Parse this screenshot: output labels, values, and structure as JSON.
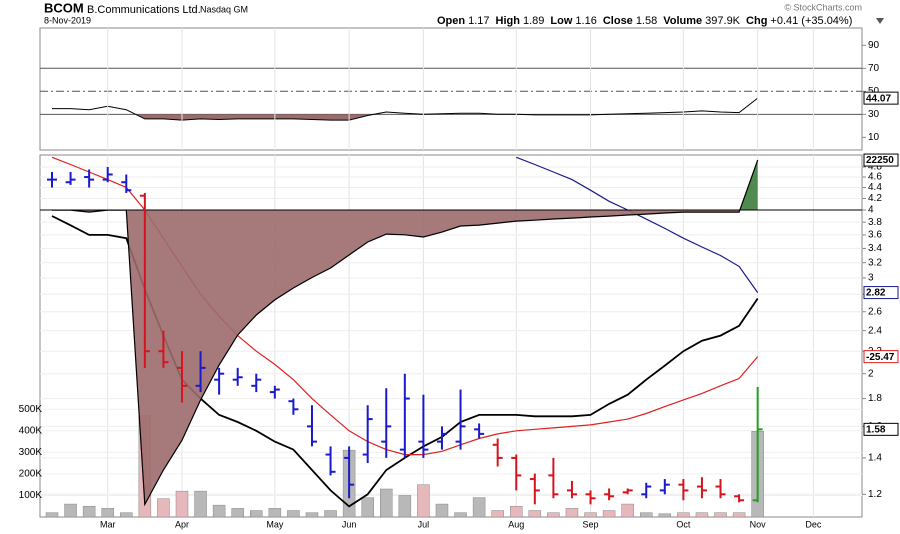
{
  "header": {
    "symbol": "BCOM",
    "name": "B.Communications Ltd.",
    "exchange": "Nasdaq GM",
    "date": "8-Nov-2019",
    "quote": [
      {
        "label": "Open",
        "value": "1.17"
      },
      {
        "label": "High",
        "value": "1.89"
      },
      {
        "label": "Low",
        "value": "1.16"
      },
      {
        "label": "Close",
        "value": "1.58"
      },
      {
        "label": "Volume",
        "value": "397.9K"
      },
      {
        "label": "Chg",
        "value": "+0.41 (+35.04%)"
      }
    ],
    "credit": "© StockCharts.com"
  },
  "chart_data": [
    {
      "type": "line",
      "series": [
        {
          "color": "#000000",
          "values": [
            35,
            35,
            34,
            37,
            34,
            26,
            26,
            25,
            26,
            25.5,
            26,
            26,
            26,
            26,
            25.5,
            25,
            25,
            29,
            32,
            31,
            30,
            30.5,
            31,
            31,
            30,
            30,
            29.5,
            29.5,
            29.5,
            29.5,
            30,
            30.5,
            31,
            31.5,
            32,
            33,
            32,
            31.5,
            44.07,
            null,
            null,
            null
          ]
        }
      ],
      "ylim": [
        -1,
        105
      ],
      "yticks": [
        10,
        30,
        50,
        70,
        90
      ],
      "ref_lines": [
        70,
        50,
        30
      ],
      "ref_dash": [
        false,
        true,
        false
      ],
      "fill_below": 30,
      "fill_color": "#9c6b6b"
    },
    {
      "type": "ohlc",
      "categories": [
        null,
        null,
        null,
        "Mar",
        null,
        null,
        null,
        "Apr",
        null,
        null,
        null,
        null,
        "May",
        null,
        null,
        null,
        "Jun",
        null,
        null,
        null,
        "Jul",
        null,
        null,
        null,
        null,
        "Aug",
        null,
        null,
        null,
        "Sep",
        null,
        null,
        null,
        null,
        "Oct",
        null,
        null,
        null,
        "Nov",
        null,
        null,
        "Dec"
      ],
      "open": [
        4.55,
        4.5,
        4.6,
        4.55,
        4.5,
        4.25,
        2.2,
        2.05,
        1.9,
        1.95,
        1.95,
        1.9,
        1.85,
        1.78,
        1.6,
        1.42,
        1.4,
        1.42,
        1.5,
        1.45,
        1.5,
        1.5,
        1.5,
        1.58,
        1.48,
        1.4,
        1.28,
        1.3,
        1.22,
        1.2,
        1.2,
        1.21,
        1.2,
        1.22,
        1.25,
        1.24,
        1.24,
        1.19,
        1.17,
        null,
        null,
        null
      ],
      "high": [
        4.7,
        4.7,
        4.75,
        4.8,
        4.65,
        4.3,
        2.4,
        2.2,
        2.2,
        2.05,
        2.05,
        2.0,
        1.9,
        1.8,
        1.75,
        1.47,
        1.47,
        1.75,
        1.88,
        2.0,
        1.83,
        1.6,
        1.87,
        1.62,
        1.52,
        1.42,
        1.31,
        1.4,
        1.27,
        1.22,
        1.23,
        1.23,
        1.26,
        1.28,
        1.28,
        1.29,
        1.28,
        1.2,
        1.89,
        null,
        null,
        null
      ],
      "low": [
        4.4,
        4.45,
        4.4,
        4.5,
        4.3,
        2.05,
        2.05,
        1.77,
        1.85,
        1.83,
        1.9,
        1.85,
        1.8,
        1.68,
        1.47,
        1.3,
        1.18,
        1.37,
        1.4,
        1.4,
        1.4,
        1.45,
        1.45,
        1.52,
        1.35,
        1.22,
        1.15,
        1.18,
        1.18,
        1.15,
        1.17,
        1.2,
        1.18,
        1.2,
        1.17,
        1.18,
        1.18,
        1.16,
        1.16,
        null,
        null,
        null
      ],
      "close": [
        4.55,
        4.55,
        4.55,
        4.65,
        4.35,
        2.2,
        2.1,
        1.9,
        2.05,
        2.0,
        1.97,
        1.95,
        1.87,
        1.72,
        1.5,
        1.32,
        1.25,
        1.65,
        1.6,
        1.8,
        1.45,
        1.55,
        1.6,
        1.55,
        1.4,
        1.3,
        1.22,
        1.2,
        1.2,
        1.18,
        1.19,
        1.22,
        1.24,
        1.25,
        1.22,
        1.22,
        1.2,
        1.17,
        1.58,
        null,
        null,
        null
      ],
      "bar_colors": [
        "#1a1acd",
        "#1a1acd",
        "#1a1acd",
        "#1a1acd",
        "#1a1acd",
        "#d4141e",
        "#d4141e",
        "#d4141e",
        "#1a1acd",
        "#1a1acd",
        "#1a1acd",
        "#1a1acd",
        "#1a1acd",
        "#1a1acd",
        "#1a1acd",
        "#1a1acd",
        "#1a1acd",
        "#1a1acd",
        "#1a1acd",
        "#1a1acd",
        "#1a1acd",
        "#1a1acd",
        "#1a1acd",
        "#1a1acd",
        "#d4141e",
        "#d4141e",
        "#d4141e",
        "#d4141e",
        "#d4141e",
        "#d4141e",
        "#d4141e",
        "#d4141e",
        "#1a1acd",
        "#1a1acd",
        "#d4141e",
        "#d4141e",
        "#d4141e",
        "#d4141e",
        "#22a022",
        null,
        null,
        null
      ],
      "close_label": true,
      "ylim": [
        1.09,
        5.05
      ],
      "log": true,
      "yticks": [
        1.2,
        1.4,
        1.6,
        1.8,
        2.0,
        2.2,
        2.4,
        2.6,
        2.8,
        3.0,
        3.2,
        3.4,
        3.6,
        3.8,
        4.0,
        4.2,
        4.4,
        4.6,
        4.8
      ],
      "grid": true,
      "series": [
        {
          "color": "#000000",
          "values": [
            3.9,
            3.75,
            3.6,
            3.6,
            3.55,
            2.86,
            2.35,
            1.95,
            1.8,
            1.68,
            1.63,
            1.57,
            1.5,
            1.45,
            1.33,
            1.22,
            1.14,
            1.2,
            1.33,
            1.4,
            1.47,
            1.53,
            1.63,
            1.68,
            1.68,
            1.68,
            1.67,
            1.67,
            1.67,
            1.68,
            1.76,
            1.83,
            1.95,
            2.07,
            2.2,
            2.3,
            2.35,
            2.45,
            2.75,
            null,
            null,
            null
          ]
        },
        {
          "color": "#e02020",
          "values": [
            5.0,
            4.85,
            4.7,
            4.55,
            4.4,
            4.0,
            3.55,
            3.15,
            2.8,
            2.55,
            2.35,
            2.2,
            2.08,
            1.95,
            1.8,
            1.68,
            1.57,
            1.5,
            1.45,
            1.42,
            1.42,
            1.44,
            1.48,
            1.52,
            1.55,
            1.57,
            1.58,
            1.59,
            1.6,
            1.61,
            1.63,
            1.65,
            1.69,
            1.74,
            1.79,
            1.84,
            1.9,
            1.96,
            2.15,
            null,
            null,
            null
          ]
        },
        {
          "color": "#1a1a8c",
          "last_label": true,
          "values": [
            null,
            null,
            null,
            null,
            null,
            null,
            null,
            null,
            null,
            null,
            null,
            null,
            null,
            null,
            null,
            null,
            null,
            null,
            null,
            null,
            null,
            null,
            null,
            null,
            null,
            5.0,
            4.85,
            4.7,
            4.55,
            4.35,
            4.15,
            4.0,
            3.85,
            3.7,
            3.55,
            3.42,
            3.3,
            3.15,
            2.82,
            null,
            null,
            null
          ]
        },
        {
          "type": "area",
          "axis": "y2",
          "color": "#9c6b6b",
          "pos_color": "#4f8a4f",
          "last_label": true,
          "values": [
            0,
            0,
            -900,
            0,
            0,
            -131000,
            -115700,
            -102400,
            -84500,
            -69000,
            -55600,
            -46700,
            -40000,
            -34700,
            -30000,
            -25800,
            -20000,
            -14200,
            -10700,
            -11000,
            -12000,
            -9800,
            -7100,
            -6700,
            -5800,
            -4900,
            -4500,
            -4000,
            -3600,
            -3100,
            -2700,
            -2200,
            -1800,
            -1300,
            -900,
            -900,
            -900,
            -900,
            22250,
            null,
            null,
            null
          ]
        }
      ],
      "y2lim": [
        -136600,
        24500
      ],
      "indicator_value": -25.47,
      "indicator_color": "#e02020"
    },
    {
      "type": "bar",
      "values": [
        20000,
        60000,
        50000,
        40000,
        20000,
        470000,
        85000,
        120000,
        120000,
        55000,
        40000,
        30000,
        40000,
        30000,
        20000,
        30000,
        310000,
        90000,
        130000,
        100000,
        150000,
        60000,
        20000,
        90000,
        30000,
        50000,
        30000,
        20000,
        40000,
        20000,
        30000,
        60000,
        20000,
        15000,
        20000,
        20000,
        20000,
        20000,
        397900,
        null,
        null,
        null
      ],
      "bar_colors": [
        "#b8b8b8",
        "#b8b8b8",
        "#b8b8b8",
        "#b8b8b8",
        "#b8b8b8",
        "#e6b8bc",
        "#e6b8bc",
        "#e6b8bc",
        "#b8b8b8",
        "#b8b8b8",
        "#b8b8b8",
        "#b8b8b8",
        "#b8b8b8",
        "#b8b8b8",
        "#b8b8b8",
        "#b8b8b8",
        "#b8b8b8",
        "#b8b8b8",
        "#b8b8b8",
        "#b8b8b8",
        "#e6b8bc",
        "#b8b8b8",
        "#b8b8b8",
        "#b8b8b8",
        "#e6b8bc",
        "#e6b8bc",
        "#e6b8bc",
        "#e6b8bc",
        "#e6b8bc",
        "#e6b8bc",
        "#e6b8bc",
        "#e6b8bc",
        "#b8b8b8",
        "#b8b8b8",
        "#e6b8bc",
        "#e6b8bc",
        "#e6b8bc",
        "#e6b8bc",
        "#b8b8b8",
        null,
        null,
        null
      ],
      "ylim": [
        0,
        1680000
      ],
      "yticks": [
        {
          "value": 100000,
          "label": "100K"
        },
        {
          "value": 200000,
          "label": "200K"
        },
        {
          "value": 300000,
          "label": "300K"
        },
        {
          "value": 400000,
          "label": "400K"
        },
        {
          "value": 500000,
          "label": "500K"
        }
      ]
    }
  ]
}
